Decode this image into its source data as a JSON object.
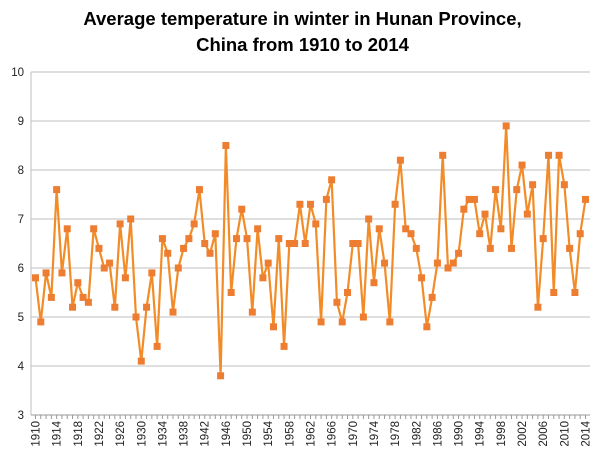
{
  "chart_data": {
    "type": "line",
    "title_line1": "Average temperature in winter in Hunan Province,",
    "title_line2": "China from 1910 to 2014",
    "xlabel": "",
    "ylabel": "",
    "ylim": [
      3,
      10
    ],
    "yticks": [
      "3",
      "4",
      "5",
      "6",
      "7",
      "8",
      "9",
      "10"
    ],
    "grid": "horizontal",
    "series_color": "#f28c28",
    "marker_color": "#ed7d31",
    "x": [
      1910,
      1911,
      1912,
      1913,
      1914,
      1915,
      1916,
      1917,
      1918,
      1919,
      1920,
      1921,
      1922,
      1923,
      1924,
      1925,
      1926,
      1927,
      1928,
      1929,
      1930,
      1931,
      1932,
      1933,
      1934,
      1935,
      1936,
      1937,
      1938,
      1939,
      1940,
      1941,
      1942,
      1943,
      1944,
      1945,
      1946,
      1947,
      1948,
      1949,
      1950,
      1951,
      1952,
      1953,
      1954,
      1955,
      1956,
      1957,
      1958,
      1959,
      1960,
      1961,
      1962,
      1963,
      1964,
      1965,
      1966,
      1967,
      1968,
      1969,
      1970,
      1971,
      1972,
      1973,
      1974,
      1975,
      1976,
      1977,
      1978,
      1979,
      1980,
      1981,
      1982,
      1983,
      1984,
      1985,
      1986,
      1987,
      1988,
      1989,
      1990,
      1991,
      1992,
      1993,
      1994,
      1995,
      1996,
      1997,
      1998,
      1999,
      2000,
      2001,
      2002,
      2003,
      2004,
      2005,
      2006,
      2007,
      2008,
      2009,
      2010,
      2011,
      2012,
      2013,
      2014
    ],
    "values": [
      5.8,
      4.9,
      5.9,
      5.4,
      7.6,
      5.9,
      6.8,
      5.2,
      5.7,
      5.4,
      5.3,
      6.8,
      6.4,
      6.0,
      6.1,
      5.2,
      6.9,
      5.8,
      7.0,
      5.0,
      4.1,
      5.2,
      5.9,
      4.4,
      6.6,
      6.3,
      5.1,
      6.0,
      6.4,
      6.6,
      6.9,
      7.6,
      6.5,
      6.3,
      6.7,
      3.8,
      8.5,
      5.5,
      6.6,
      7.2,
      6.6,
      5.1,
      6.8,
      5.8,
      6.1,
      4.8,
      6.6,
      4.4,
      6.5,
      6.5,
      7.3,
      6.5,
      7.3,
      6.9,
      4.9,
      7.4,
      7.8,
      5.3,
      4.9,
      5.5,
      6.5,
      6.5,
      5.0,
      7.0,
      5.7,
      6.8,
      6.1,
      4.9,
      7.3,
      8.2,
      6.8,
      6.7,
      6.4,
      5.8,
      4.8,
      5.4,
      6.1,
      8.3,
      6.0,
      6.1,
      6.3,
      7.2,
      7.4,
      7.4,
      6.7,
      7.1,
      6.4,
      7.6,
      6.8,
      8.9,
      6.4,
      7.6,
      8.1,
      7.1,
      7.7,
      5.2,
      6.6,
      8.3,
      5.5,
      8.3,
      7.7,
      6.4,
      5.5,
      6.7,
      7.4
    ],
    "xtick_labels": [
      "1910",
      "1914",
      "1918",
      "1922",
      "1926",
      "1930",
      "1934",
      "1938",
      "1942",
      "1946",
      "1950",
      "1954",
      "1958",
      "1962",
      "1966",
      "1970",
      "1974",
      "1978",
      "1982",
      "1986",
      "1990",
      "1994",
      "1998",
      "2002",
      "2006",
      "2010",
      "2014"
    ]
  }
}
